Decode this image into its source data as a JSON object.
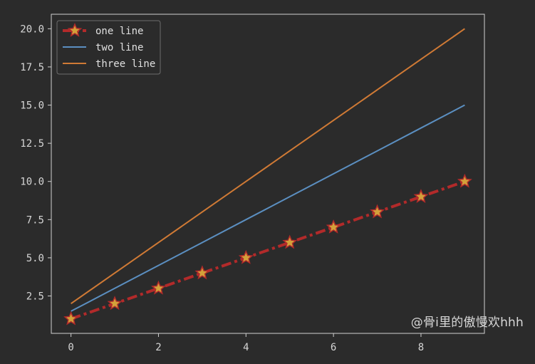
{
  "chart_data": {
    "type": "line",
    "x": [
      0,
      1,
      2,
      3,
      4,
      5,
      6,
      7,
      8,
      9
    ],
    "series": [
      {
        "name": "one line",
        "values": [
          1,
          2,
          3,
          4,
          5,
          6,
          7,
          8,
          9,
          10
        ],
        "color": "#b22a2a",
        "marker": "star",
        "marker_color": "#d3a13a",
        "line_style": "dash-dot"
      },
      {
        "name": "two line",
        "values": [
          1.5,
          3,
          4.5,
          6,
          7.5,
          9,
          10.5,
          12,
          13.5,
          15
        ],
        "color": "#5b8fc1",
        "marker": "none",
        "line_style": "solid"
      },
      {
        "name": "three line",
        "values": [
          2,
          4,
          6,
          8,
          10,
          12,
          14,
          16,
          18,
          20
        ],
        "color": "#d07a35",
        "marker": "none",
        "line_style": "solid"
      }
    ],
    "xlim": [
      -0.45,
      9.45
    ],
    "ylim": [
      0.05,
      20.95
    ],
    "x_ticks": [
      0,
      2,
      4,
      6,
      8
    ],
    "x_tick_labels": [
      "0",
      "2",
      "4",
      "6",
      "8"
    ],
    "y_ticks": [
      2.5,
      5.0,
      7.5,
      10.0,
      12.5,
      15.0,
      17.5,
      20.0
    ],
    "y_tick_labels": [
      "2.5",
      "5.0",
      "7.5",
      "10.0",
      "12.5",
      "15.0",
      "17.5",
      "20.0"
    ],
    "legend_position": "upper-left",
    "grid": false
  },
  "watermark": "@骨i里的傲慢欢hhh"
}
